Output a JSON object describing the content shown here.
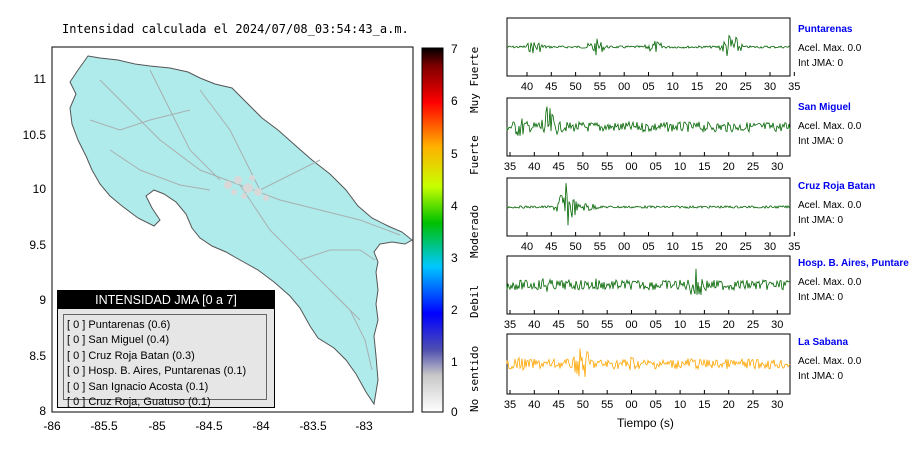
{
  "map": {
    "title": "Intensidad calculada el 2024/07/08_03:54:43_a.m.",
    "lat_ticks": [
      "11",
      "10.5",
      "10",
      "9.5",
      "9",
      "8.5",
      "8"
    ],
    "lon_ticks": [
      "-86",
      "-85.5",
      "-85",
      "-84.5",
      "-84",
      "-83.5",
      "-83"
    ],
    "colorbar_ticks": [
      "7",
      "6",
      "5",
      "4",
      "3",
      "2",
      "1",
      "0"
    ],
    "colorbar_words": [
      "Muy Fuerte",
      "Fuerte",
      "Moderado",
      "Debil",
      "No sentido"
    ],
    "land_color": "#b0ebeb"
  },
  "legend": {
    "title": "INTENSIDAD JMA [0 a 7]",
    "items": [
      "[ 0 ]  Puntarenas (0.6)",
      "[ 0 ]  San Miguel (0.4)",
      "[ 0 ]  Cruz Roja Batan (0.3)",
      "[ 0 ]  Hosp. B. Aires, Puntarenas (0.1)",
      "[ 0 ]  San Ignacio Acosta (0.1)",
      "[ 0 ]  Cruz Roja, Guatuso (0.1)"
    ]
  },
  "stations": [
    {
      "name": "Puntarenas",
      "acel": "Acel. Max. 0.0",
      "int": "Int JMA: 0",
      "ticks": [
        "40",
        "45",
        "50",
        "55",
        "00",
        "05",
        "10",
        "15",
        "20",
        "25",
        "30",
        "35"
      ],
      "color": "#006400"
    },
    {
      "name": "San Miguel",
      "acel": "Acel. Max. 0.0",
      "int": "Int JMA: 0",
      "ticks": [
        "35",
        "40",
        "45",
        "50",
        "55",
        "00",
        "05",
        "10",
        "15",
        "20",
        "25",
        "30"
      ],
      "color": "#006400"
    },
    {
      "name": "Cruz Roja Batan",
      "acel": "Acel. Max. 0.0",
      "int": "Int JMA: 0",
      "ticks": [
        "40",
        "45",
        "50",
        "55",
        "00",
        "05",
        "10",
        "15",
        "20",
        "25",
        "30",
        "35"
      ],
      "color": "#006400"
    },
    {
      "name": "Hosp. B. Aires, Puntare",
      "acel": "Acel. Max. 0.0",
      "int": "Int JMA: 0",
      "ticks": [
        "35",
        "40",
        "45",
        "50",
        "55",
        "00",
        "05",
        "10",
        "15",
        "20",
        "25",
        "30"
      ],
      "color": "#006400"
    },
    {
      "name": "La Sabana",
      "acel": "Acel. Max. 0.0",
      "int": "Int JMA: 0",
      "ticks": [
        "35",
        "40",
        "45",
        "50",
        "55",
        "00",
        "05",
        "10",
        "15",
        "20",
        "25",
        "30"
      ],
      "color": "#ffa500"
    }
  ],
  "time_axis_label": "Tiempo (s)"
}
